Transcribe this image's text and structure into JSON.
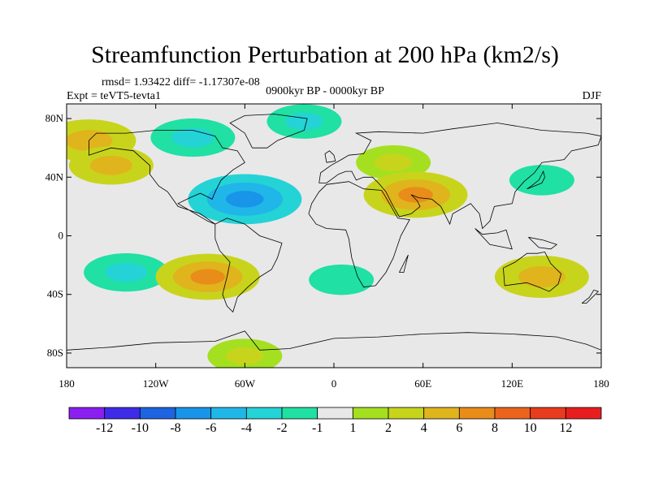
{
  "title": "Streamfunction Perturbation at 200 hPa (km2/s)",
  "stats_line": "rmsd= 1.93422 diff= -1.17307e-08",
  "experiment": "Expt = teVT5-tevta1",
  "period": "0900kyr BP - 0000kyr BP",
  "season": "DJF",
  "lat_ticks": [
    {
      "label": "80N",
      "lat": 80
    },
    {
      "label": "40N",
      "lat": 40
    },
    {
      "label": "0",
      "lat": 0
    },
    {
      "label": "40S",
      "lat": -40
    },
    {
      "label": "80S",
      "lat": -80
    }
  ],
  "lon_ticks": [
    {
      "label": "180",
      "lon": -180
    },
    {
      "label": "120W",
      "lon": -120
    },
    {
      "label": "60W",
      "lon": -60
    },
    {
      "label": "0",
      "lon": 0
    },
    {
      "label": "60E",
      "lon": 60
    },
    {
      "label": "120E",
      "lon": 120
    },
    {
      "label": "180",
      "lon": 180
    }
  ],
  "colorbar": {
    "colors": [
      "#8a1ff0",
      "#3e2be8",
      "#1e64e0",
      "#1895e8",
      "#20b7e8",
      "#24d3d6",
      "#20e0a4",
      "#e8e8e8",
      "#a4e020",
      "#c8d41c",
      "#e0b41c",
      "#e88c1a",
      "#ea641c",
      "#e83c1e",
      "#e81e1e"
    ],
    "labels": [
      "-12",
      "-10",
      "-8",
      "-6",
      "-4",
      "-2",
      "-1",
      "1",
      "2",
      "4",
      "6",
      "8",
      "10",
      "12"
    ]
  },
  "chart_data": {
    "type": "contour-map",
    "variable": "Streamfunction Perturbation at 200 hPa",
    "units": "km2/s",
    "projection": "cylindrical equidistant",
    "lon_range": [
      -180,
      180
    ],
    "lat_range": [
      -90,
      90
    ],
    "contour_levels": [
      -12,
      -10,
      -8,
      -6,
      -4,
      -2,
      -1,
      1,
      2,
      4,
      6,
      8,
      10,
      12
    ],
    "features": [
      {
        "name": "North Pacific / Alaska high",
        "lon": -165,
        "lat": 65,
        "value": 5
      },
      {
        "name": "North America / Arctic low",
        "lon": -95,
        "lat": 67,
        "value": -4
      },
      {
        "name": "Arctic low",
        "lon": -20,
        "lat": 78,
        "value": -3
      },
      {
        "name": "Eurasia high belt",
        "lon": 40,
        "lat": 50,
        "value": 3
      },
      {
        "name": "Middle East high",
        "lon": 55,
        "lat": 28,
        "value": 6
      },
      {
        "name": "North Pacific low",
        "lon": 140,
        "lat": 38,
        "value": -2
      },
      {
        "name": "Caribbean / subtropical Atlantic low",
        "lon": -60,
        "lat": 25,
        "value": -7
      },
      {
        "name": "Eastern North Pacific high",
        "lon": -150,
        "lat": 48,
        "value": 4
      },
      {
        "name": "South Pacific low",
        "lon": -140,
        "lat": -25,
        "value": -4
      },
      {
        "name": "South Pacific high",
        "lon": -85,
        "lat": -28,
        "value": 6
      },
      {
        "name": "South Atlantic low",
        "lon": 5,
        "lat": -30,
        "value": -2
      },
      {
        "name": "Australia high",
        "lon": 140,
        "lat": -28,
        "value": 5
      },
      {
        "name": "Antarctic high",
        "lon": -60,
        "lat": -82,
        "value": 3
      }
    ]
  }
}
